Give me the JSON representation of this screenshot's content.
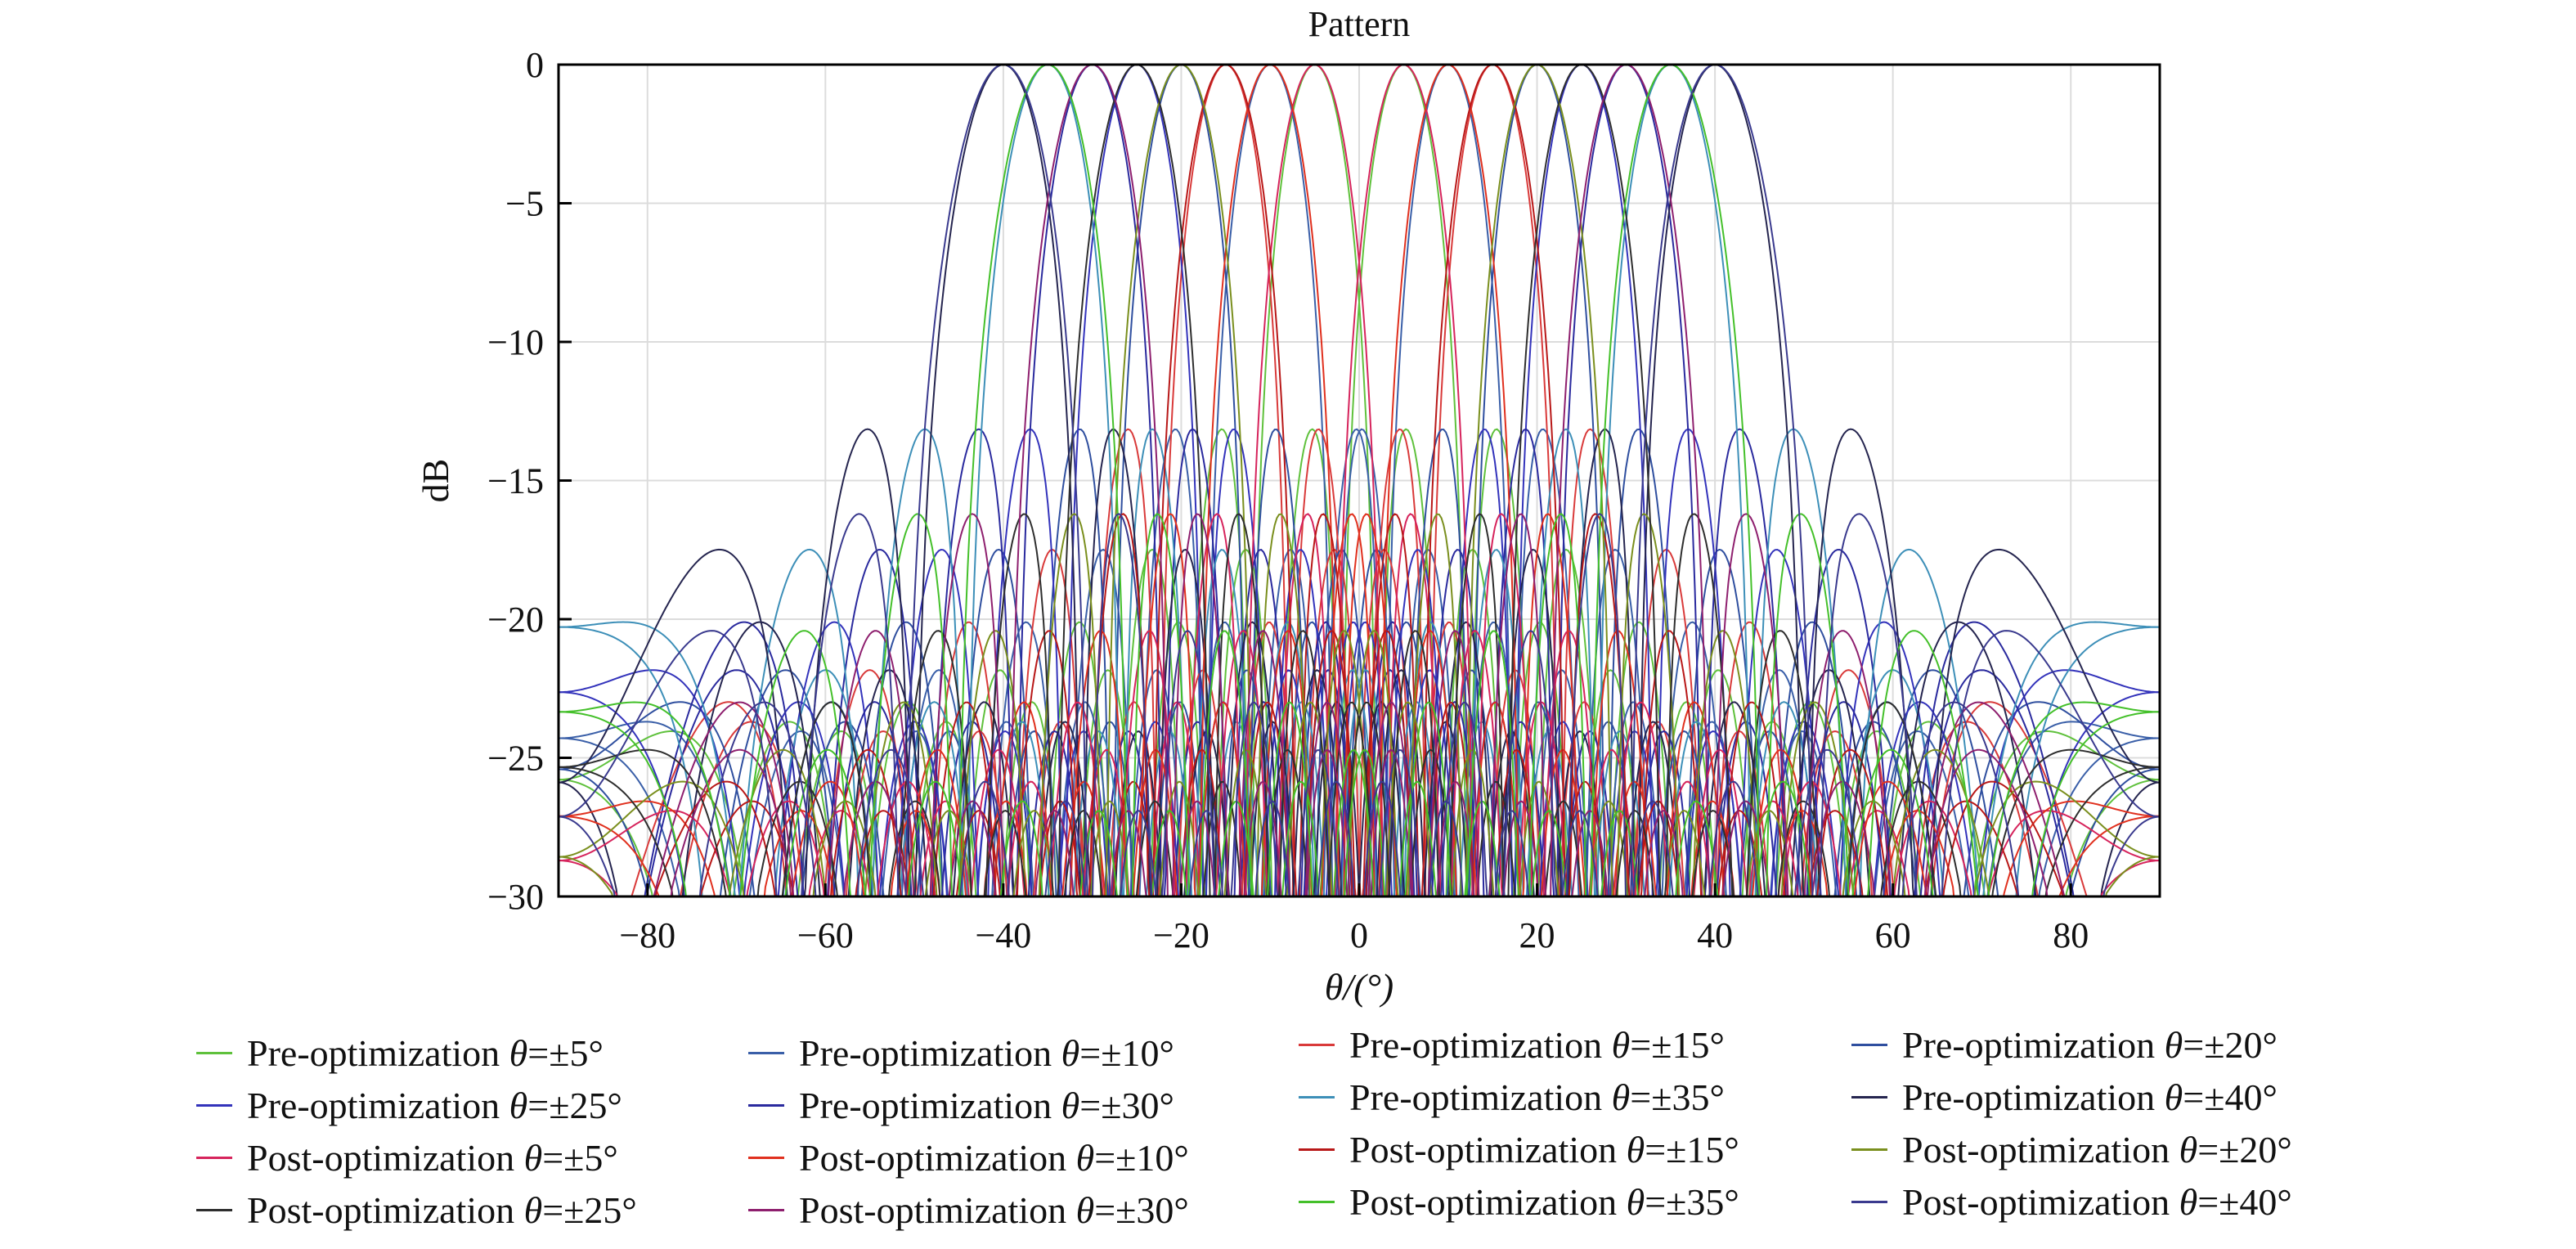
{
  "chart_data": {
    "type": "line",
    "title": "Pattern",
    "xlabel": "θ/(°)",
    "ylabel": "dB",
    "xlim": [
      -90,
      90
    ],
    "ylim": [
      -30,
      0
    ],
    "xticks": [
      -80,
      -60,
      -40,
      -20,
      0,
      20,
      40,
      60,
      80
    ],
    "xtick_labels": [
      "−80",
      "−60",
      "−40",
      "−20",
      "0",
      "20",
      "40",
      "60",
      "80"
    ],
    "yticks": [
      0,
      -5,
      -10,
      -15,
      -20,
      -25,
      -30
    ],
    "ytick_labels": [
      "0",
      "−5",
      "−10",
      "−15",
      "−20",
      "−25",
      "−30"
    ],
    "grid": true,
    "legend_position": "bottom",
    "series": [
      {
        "name": "Pre-optimization θ=±5°",
        "color": "#5fc13c",
        "steer": 5,
        "sidelobe_db": -13.3
      },
      {
        "name": "Pre-optimization θ=±10°",
        "color": "#3a5fa8",
        "steer": 10,
        "sidelobe_db": -13.3
      },
      {
        "name": "Pre-optimization θ=±15°",
        "color": "#d93a3a",
        "steer": 15,
        "sidelobe_db": -13.3
      },
      {
        "name": "Pre-optimization θ=±20°",
        "color": "#2f4f9f",
        "steer": 20,
        "sidelobe_db": -13.3
      },
      {
        "name": "Pre-optimization θ=±25°",
        "color": "#3333bb",
        "steer": 25,
        "sidelobe_db": -13.3
      },
      {
        "name": "Pre-optimization θ=±30°",
        "color": "#2a2a9e",
        "steer": 30,
        "sidelobe_db": -13.3
      },
      {
        "name": "Pre-optimization θ=±35°",
        "color": "#3d8fb8",
        "steer": 35,
        "sidelobe_db": -13.3
      },
      {
        "name": "Pre-optimization θ=±40°",
        "color": "#25254f",
        "steer": 40,
        "sidelobe_db": -13.3
      },
      {
        "name": "Post-optimization θ=±5°",
        "color": "#d6245c",
        "steer": 5,
        "sidelobe_db": -17.5
      },
      {
        "name": "Post-optimization θ=±10°",
        "color": "#e0301e",
        "steer": 10,
        "sidelobe_db": -17.5
      },
      {
        "name": "Post-optimization θ=±15°",
        "color": "#b81818",
        "steer": 15,
        "sidelobe_db": -17.5
      },
      {
        "name": "Post-optimization θ=±20°",
        "color": "#7a8f1e",
        "steer": 20,
        "sidelobe_db": -17.5
      },
      {
        "name": "Post-optimization θ=±25°",
        "color": "#2e2e2e",
        "steer": 25,
        "sidelobe_db": -17.5
      },
      {
        "name": "Post-optimization θ=±30°",
        "color": "#8e1f6e",
        "steer": 30,
        "sidelobe_db": -17.5
      },
      {
        "name": "Post-optimization θ=±35°",
        "color": "#44c02a",
        "steer": 35,
        "sidelobe_db": -17.5
      },
      {
        "name": "Post-optimization θ=±40°",
        "color": "#3a3a8e",
        "steer": 40,
        "sidelobe_db": -17.5
      }
    ]
  },
  "legend": {
    "items": [
      {
        "prefix": "Pre-optimization ",
        "theta": "θ",
        "suffix": "=±5°",
        "color": "#5fc13c"
      },
      {
        "prefix": "Pre-optimization ",
        "theta": "θ",
        "suffix": "=±10°",
        "color": "#3a5fa8"
      },
      {
        "prefix": "Pre-optimization ",
        "theta": "θ",
        "suffix": "=±15°",
        "color": "#d93a3a"
      },
      {
        "prefix": "Pre-optimization ",
        "theta": "θ",
        "suffix": "=±20°",
        "color": "#2f4f9f"
      },
      {
        "prefix": "Pre-optimization ",
        "theta": "θ",
        "suffix": "=±25°",
        "color": "#3333bb"
      },
      {
        "prefix": "Pre-optimization ",
        "theta": "θ",
        "suffix": "=±30°",
        "color": "#2a2a9e"
      },
      {
        "prefix": "Pre-optimization ",
        "theta": "θ",
        "suffix": "=±35°",
        "color": "#3d8fb8"
      },
      {
        "prefix": "Pre-optimization ",
        "theta": "θ",
        "suffix": "=±40°",
        "color": "#25254f"
      },
      {
        "prefix": "Post-optimization ",
        "theta": "θ",
        "suffix": "=±5°",
        "color": "#d6245c"
      },
      {
        "prefix": "Post-optimization ",
        "theta": "θ",
        "suffix": "=±10°",
        "color": "#e0301e"
      },
      {
        "prefix": "Post-optimization ",
        "theta": "θ",
        "suffix": "=±15°",
        "color": "#b81818"
      },
      {
        "prefix": "Post-optimization ",
        "theta": "θ",
        "suffix": "=±20°",
        "color": "#7a8f1e"
      },
      {
        "prefix": "Post-optimization ",
        "theta": "θ",
        "suffix": "=±25°",
        "color": "#2e2e2e"
      },
      {
        "prefix": "Post-optimization ",
        "theta": "θ",
        "suffix": "=±30°",
        "color": "#8e1f6e"
      },
      {
        "prefix": "Post-optimization ",
        "theta": "θ",
        "suffix": "=±35°",
        "color": "#44c02a"
      },
      {
        "prefix": "Post-optimization ",
        "theta": "θ",
        "suffix": "=±40°",
        "color": "#3a3a8e"
      }
    ]
  }
}
